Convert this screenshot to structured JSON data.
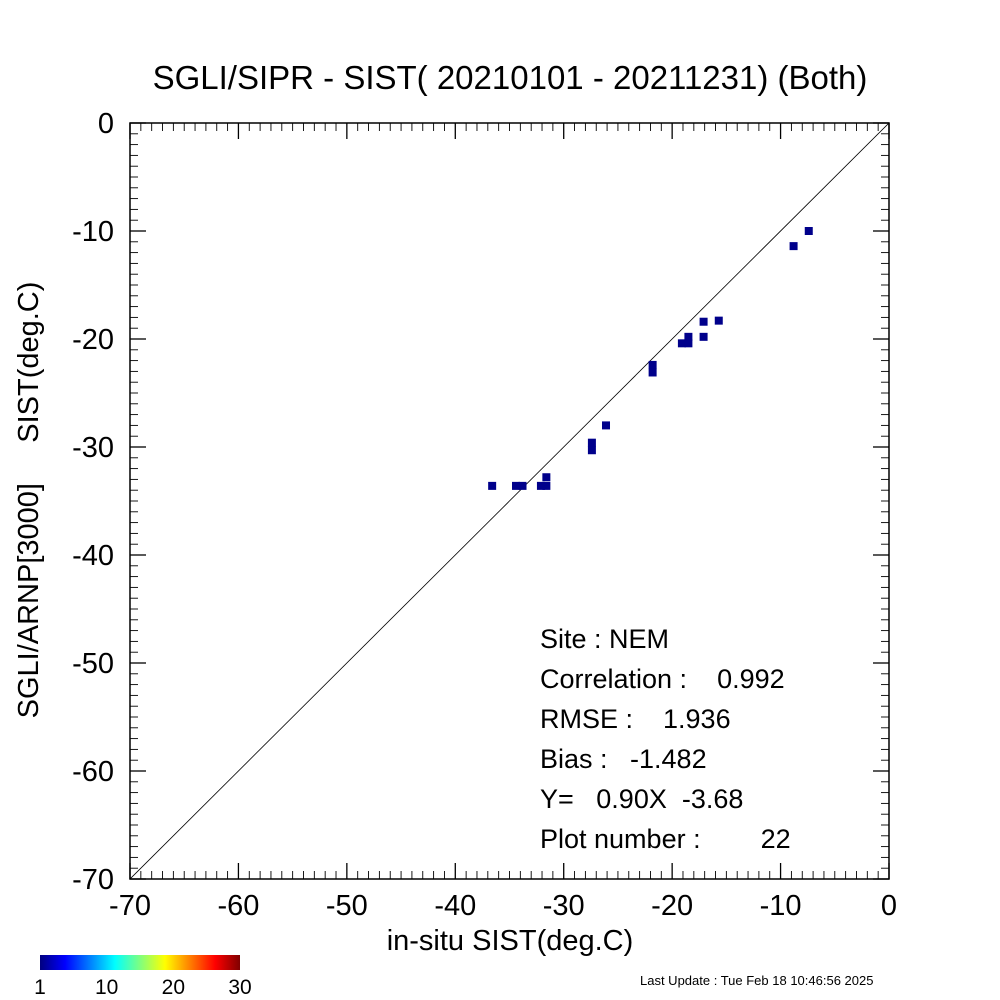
{
  "chart_data": {
    "type": "scatter",
    "title": "SGLI/SIPR - SIST( 20210101 - 20211231) (Both)",
    "xlabel": "in-situ SIST(deg.C)",
    "ylabel": "SGLI/ARNP[3000]     SIST(deg.C)",
    "xlim": [
      -70,
      0
    ],
    "ylim": [
      -70,
      0
    ],
    "xticks": [
      -70,
      -60,
      -50,
      -40,
      -30,
      -20,
      -10,
      0
    ],
    "yticks": [
      -70,
      -60,
      -50,
      -40,
      -30,
      -20,
      -10,
      0
    ],
    "minor_ticks_per_major": 10,
    "grid": false,
    "reference_line": "1:1",
    "point_color": "#00008b",
    "points": [
      {
        "x": -36.6,
        "y": -33.6
      },
      {
        "x": -34.4,
        "y": -33.6
      },
      {
        "x": -33.8,
        "y": -33.6
      },
      {
        "x": -32.1,
        "y": -33.6
      },
      {
        "x": -31.6,
        "y": -33.6
      },
      {
        "x": -31.6,
        "y": -32.8
      },
      {
        "x": -27.4,
        "y": -29.6
      },
      {
        "x": -27.4,
        "y": -30.3
      },
      {
        "x": -26.1,
        "y": -28.0
      },
      {
        "x": -21.8,
        "y": -22.4
      },
      {
        "x": -21.8,
        "y": -23.1
      },
      {
        "x": -19.1,
        "y": -20.4
      },
      {
        "x": -18.5,
        "y": -19.8
      },
      {
        "x": -18.5,
        "y": -20.4
      },
      {
        "x": -17.1,
        "y": -18.4
      },
      {
        "x": -17.1,
        "y": -19.8
      },
      {
        "x": -15.7,
        "y": -18.3
      },
      {
        "x": -8.8,
        "y": -11.4
      },
      {
        "x": -7.4,
        "y": -10.0
      }
    ],
    "stats": {
      "site": "Site : NEM",
      "correlation": "Correlation :    0.992",
      "rmse": "RMSE :    1.936",
      "bias": "Bias :   -1.482",
      "equation": "Y=   0.90X  -3.68",
      "plot_number": "Plot number :        22"
    },
    "colorbar": {
      "colors": [
        "#00007f",
        "#0000ff",
        "#007fff",
        "#00ffff",
        "#7fff7f",
        "#ffff00",
        "#ff7f00",
        "#ff0000",
        "#7f0000"
      ],
      "ticks": [
        "1",
        "10",
        "20",
        "30"
      ]
    }
  },
  "footer": {
    "last_update": "Last Update : Tue Feb 18 10:46:56 2025"
  }
}
